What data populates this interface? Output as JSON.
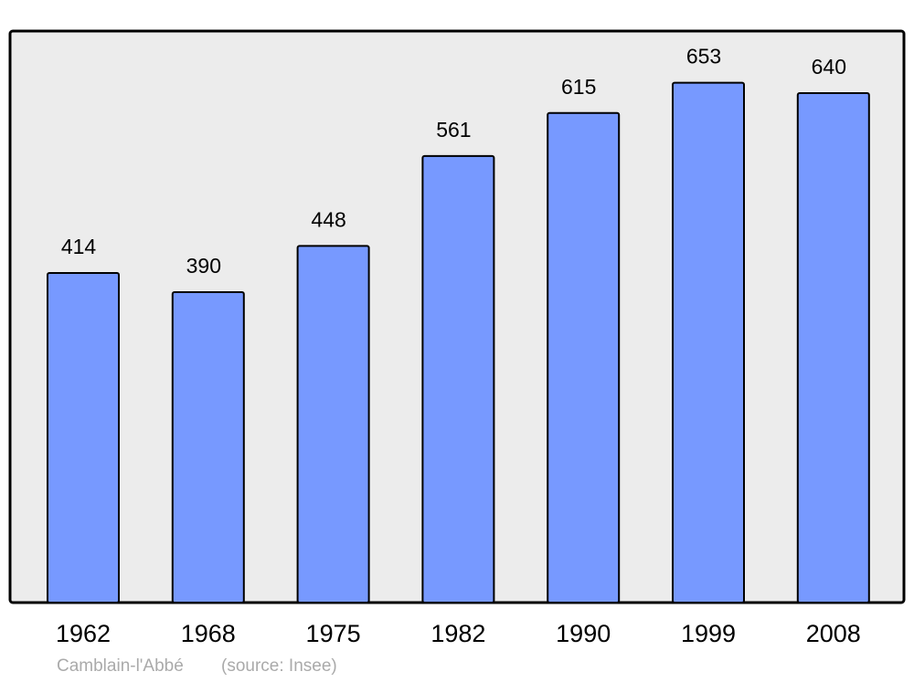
{
  "chart_data": {
    "type": "bar",
    "categories": [
      "1962",
      "1968",
      "1975",
      "1982",
      "1990",
      "1999",
      "2008"
    ],
    "values": [
      414,
      390,
      448,
      561,
      615,
      653,
      640
    ],
    "color": "#7799ff",
    "ylim": [
      0,
      718
    ],
    "caption": "Camblain-l'Abbé",
    "source": "(source: Insee)"
  }
}
